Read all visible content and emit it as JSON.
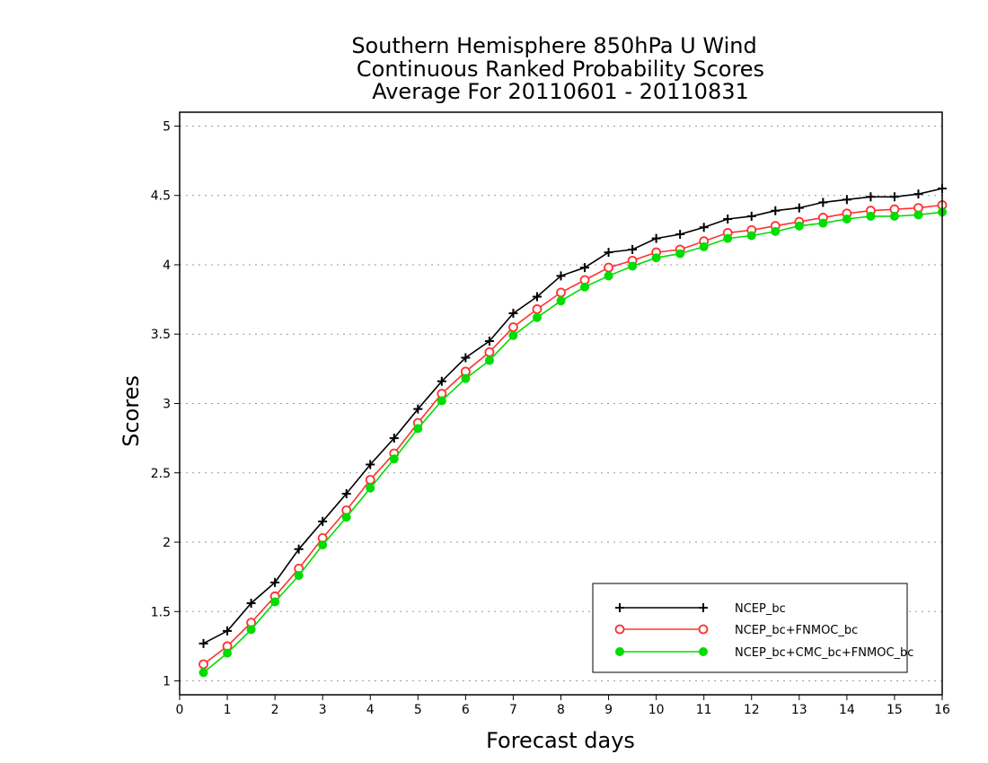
{
  "chart_data": {
    "type": "line",
    "title": [
      "Southern Hemisphere 850hPa U Wind",
      "Continuous Ranked Probability Scores",
      "Average For 20110601 - 20110831"
    ],
    "xlabel": "Forecast days",
    "ylabel": "Scores",
    "xlim": [
      0,
      16
    ],
    "ylim": [
      0.9,
      5.1
    ],
    "xticks": [
      "0",
      "1",
      "2",
      "3",
      "4",
      "5",
      "6",
      "7",
      "8",
      "9",
      "10",
      "11",
      "12",
      "13",
      "14",
      "15",
      "16"
    ],
    "yticks": [
      "1",
      "1.5",
      "2",
      "2.5",
      "3",
      "3.5",
      "4",
      "4.5",
      "5"
    ],
    "grid": true,
    "legend_position": "bottom-right",
    "x": [
      0.5,
      1,
      1.5,
      2,
      2.5,
      3,
      3.5,
      4,
      4.5,
      5,
      5.5,
      6,
      6.5,
      7,
      7.5,
      8,
      8.5,
      9,
      9.5,
      10,
      10.5,
      11,
      11.5,
      12,
      12.5,
      13,
      13.5,
      14,
      14.5,
      15,
      15.5,
      16
    ],
    "series": [
      {
        "name": "NCEP_bc",
        "color": "#000000",
        "marker": "plus",
        "values": [
          1.27,
          1.36,
          1.56,
          1.71,
          1.95,
          2.15,
          2.35,
          2.56,
          2.75,
          2.96,
          3.16,
          3.33,
          3.45,
          3.65,
          3.77,
          3.92,
          3.98,
          4.09,
          4.11,
          4.19,
          4.22,
          4.27,
          4.33,
          4.35,
          4.39,
          4.41,
          4.45,
          4.47,
          4.49,
          4.49,
          4.51,
          4.55
        ]
      },
      {
        "name": "NCEP_bc+FNMOC_bc",
        "color": "#ff3030",
        "marker": "open-circle",
        "values": [
          1.12,
          1.25,
          1.42,
          1.61,
          1.81,
          2.03,
          2.23,
          2.45,
          2.64,
          2.86,
          3.07,
          3.23,
          3.37,
          3.55,
          3.68,
          3.8,
          3.89,
          3.98,
          4.03,
          4.09,
          4.11,
          4.17,
          4.23,
          4.25,
          4.28,
          4.31,
          4.34,
          4.37,
          4.39,
          4.4,
          4.41,
          4.43
        ]
      },
      {
        "name": "NCEP_bc+CMC_bc+FNMOC_bc",
        "color": "#00dd00",
        "marker": "filled-circle",
        "values": [
          1.06,
          1.2,
          1.37,
          1.57,
          1.76,
          1.98,
          2.18,
          2.39,
          2.6,
          2.82,
          3.02,
          3.18,
          3.31,
          3.49,
          3.62,
          3.74,
          3.84,
          3.92,
          3.99,
          4.05,
          4.08,
          4.13,
          4.19,
          4.21,
          4.24,
          4.28,
          4.3,
          4.33,
          4.35,
          4.35,
          4.36,
          4.38
        ]
      }
    ]
  }
}
